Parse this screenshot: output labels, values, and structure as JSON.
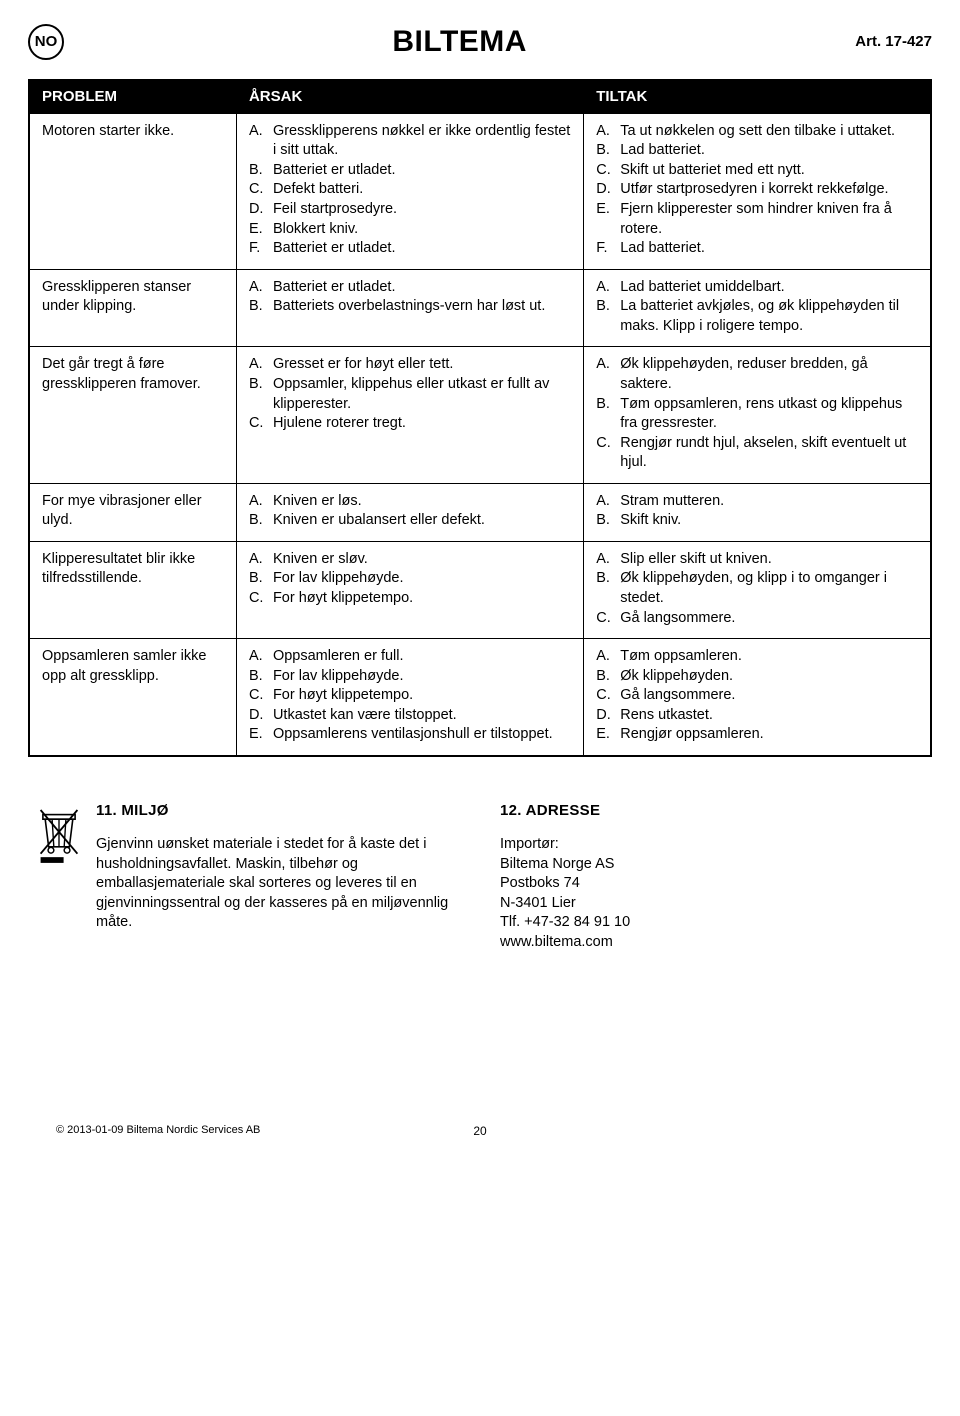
{
  "header": {
    "country_code": "NO",
    "brand": "BILTEMA",
    "article_label": "Art. 17-427"
  },
  "table": {
    "columns": {
      "problem": "PROBLEM",
      "cause": "ÅRSAK",
      "action": "TILTAK"
    },
    "rows": [
      {
        "problem": "Motoren starter ikke.",
        "causes": [
          {
            "l": "A.",
            "t": "Gressklipperens nøkkel er ikke ordentlig festet i sitt uttak."
          },
          {
            "l": "B.",
            "t": "Batteriet er utladet."
          },
          {
            "l": "C.",
            "t": "Defekt batteri."
          },
          {
            "l": "D.",
            "t": "Feil startprosedyre."
          },
          {
            "l": "E.",
            "t": "Blokkert kniv."
          },
          {
            "l": "F.",
            "t": "Batteriet er utladet."
          }
        ],
        "actions": [
          {
            "l": "A.",
            "t": "Ta ut nøkkelen og sett den tilbake i uttaket."
          },
          {
            "l": "B.",
            "t": "Lad batteriet."
          },
          {
            "l": "C.",
            "t": "Skift ut batteriet med ett nytt."
          },
          {
            "l": "D.",
            "t": "Utfør startprosedyren i korrekt rekkefølge."
          },
          {
            "l": "E.",
            "t": "Fjern klipperester som hindrer kniven fra å rotere."
          },
          {
            "l": "F.",
            "t": "Lad batteriet."
          }
        ]
      },
      {
        "problem": "Gressklipperen stanser under klipping.",
        "causes": [
          {
            "l": "A.",
            "t": "Batteriet er utladet."
          },
          {
            "l": "B.",
            "t": "Batteriets overbelastnings-vern har løst ut."
          }
        ],
        "actions": [
          {
            "l": "A.",
            "t": "Lad batteriet umiddelbart."
          },
          {
            "l": "B.",
            "t": "La batteriet avkjøles, og øk klippehøyden til maks. Klipp i roligere tempo."
          }
        ]
      },
      {
        "problem": "Det går tregt å føre gressklipperen framover.",
        "causes": [
          {
            "l": "A.",
            "t": "Gresset er for høyt eller tett."
          },
          {
            "l": "B.",
            "t": "Oppsamler, klippehus eller utkast er fullt av klipperester."
          },
          {
            "l": "C.",
            "t": "Hjulene roterer tregt."
          }
        ],
        "actions": [
          {
            "l": "A.",
            "t": "Øk klippehøyden, reduser bredden, gå saktere."
          },
          {
            "l": "B.",
            "t": "Tøm oppsamleren, rens utkast og klippehus fra gressrester."
          },
          {
            "l": "C.",
            "t": "Rengjør rundt hjul, akselen, skift eventuelt ut hjul."
          }
        ]
      },
      {
        "problem": "For mye vibrasjoner eller ulyd.",
        "causes": [
          {
            "l": "A.",
            "t": "Kniven er løs."
          },
          {
            "l": "B.",
            "t": "Kniven er ubalansert eller defekt."
          }
        ],
        "actions": [
          {
            "l": "A.",
            "t": "Stram mutteren."
          },
          {
            "l": "B.",
            "t": "Skift kniv."
          }
        ]
      },
      {
        "problem": "Klipperesultatet blir ikke tilfredsstillende.",
        "causes": [
          {
            "l": "A.",
            "t": "Kniven er sløv."
          },
          {
            "l": "B.",
            "t": "For lav klippehøyde."
          },
          {
            "l": "C.",
            "t": "For høyt klippetempo."
          }
        ],
        "actions": [
          {
            "l": "A.",
            "t": "Slip eller skift ut kniven."
          },
          {
            "l": "B.",
            "t": "Øk klippehøyden, og klipp i to omganger i stedet."
          },
          {
            "l": "C.",
            "t": "Gå langsommere."
          }
        ]
      },
      {
        "problem": "Oppsamleren samler ikke opp alt gressklipp.",
        "causes": [
          {
            "l": "A.",
            "t": "Oppsamleren er full."
          },
          {
            "l": "B.",
            "t": "For lav klippehøyde."
          },
          {
            "l": "C.",
            "t": "For høyt klippetempo."
          },
          {
            "l": "D.",
            "t": "Utkastet kan være tilstoppet."
          },
          {
            "l": "E.",
            "t": "Oppsamlerens ventilasjonshull er tilstoppet."
          }
        ],
        "actions": [
          {
            "l": "A.",
            "t": "Tøm oppsamleren."
          },
          {
            "l": "B.",
            "t": "Øk klippehøyden."
          },
          {
            "l": "C.",
            "t": "Gå langsommere."
          },
          {
            "l": "D.",
            "t": "Rens utkastet."
          },
          {
            "l": "E.",
            "t": "Rengjør oppsamleren."
          }
        ]
      }
    ]
  },
  "environment": {
    "title": "11. MILJØ",
    "body": "Gjenvinn uønsket materiale i stedet for å kaste det i husholdningsavfallet. Maskin, tilbehør og emballasjemateriale skal sorteres og leveres til en gjenvinningssentral og der kasseres på en miljøvennlig måte."
  },
  "address": {
    "title": "12. ADRESSE",
    "lines": [
      "Importør:",
      "Biltema Norge AS",
      "Postboks 74",
      "N-3401 Lier",
      "Tlf. +47-32 84 91 10",
      "www.biltema.com"
    ]
  },
  "footer": {
    "copyright": "© 2013-01-09 Biltema Nordic Services AB",
    "page_number": "20"
  },
  "colors": {
    "black": "#000000",
    "white": "#ffffff"
  }
}
